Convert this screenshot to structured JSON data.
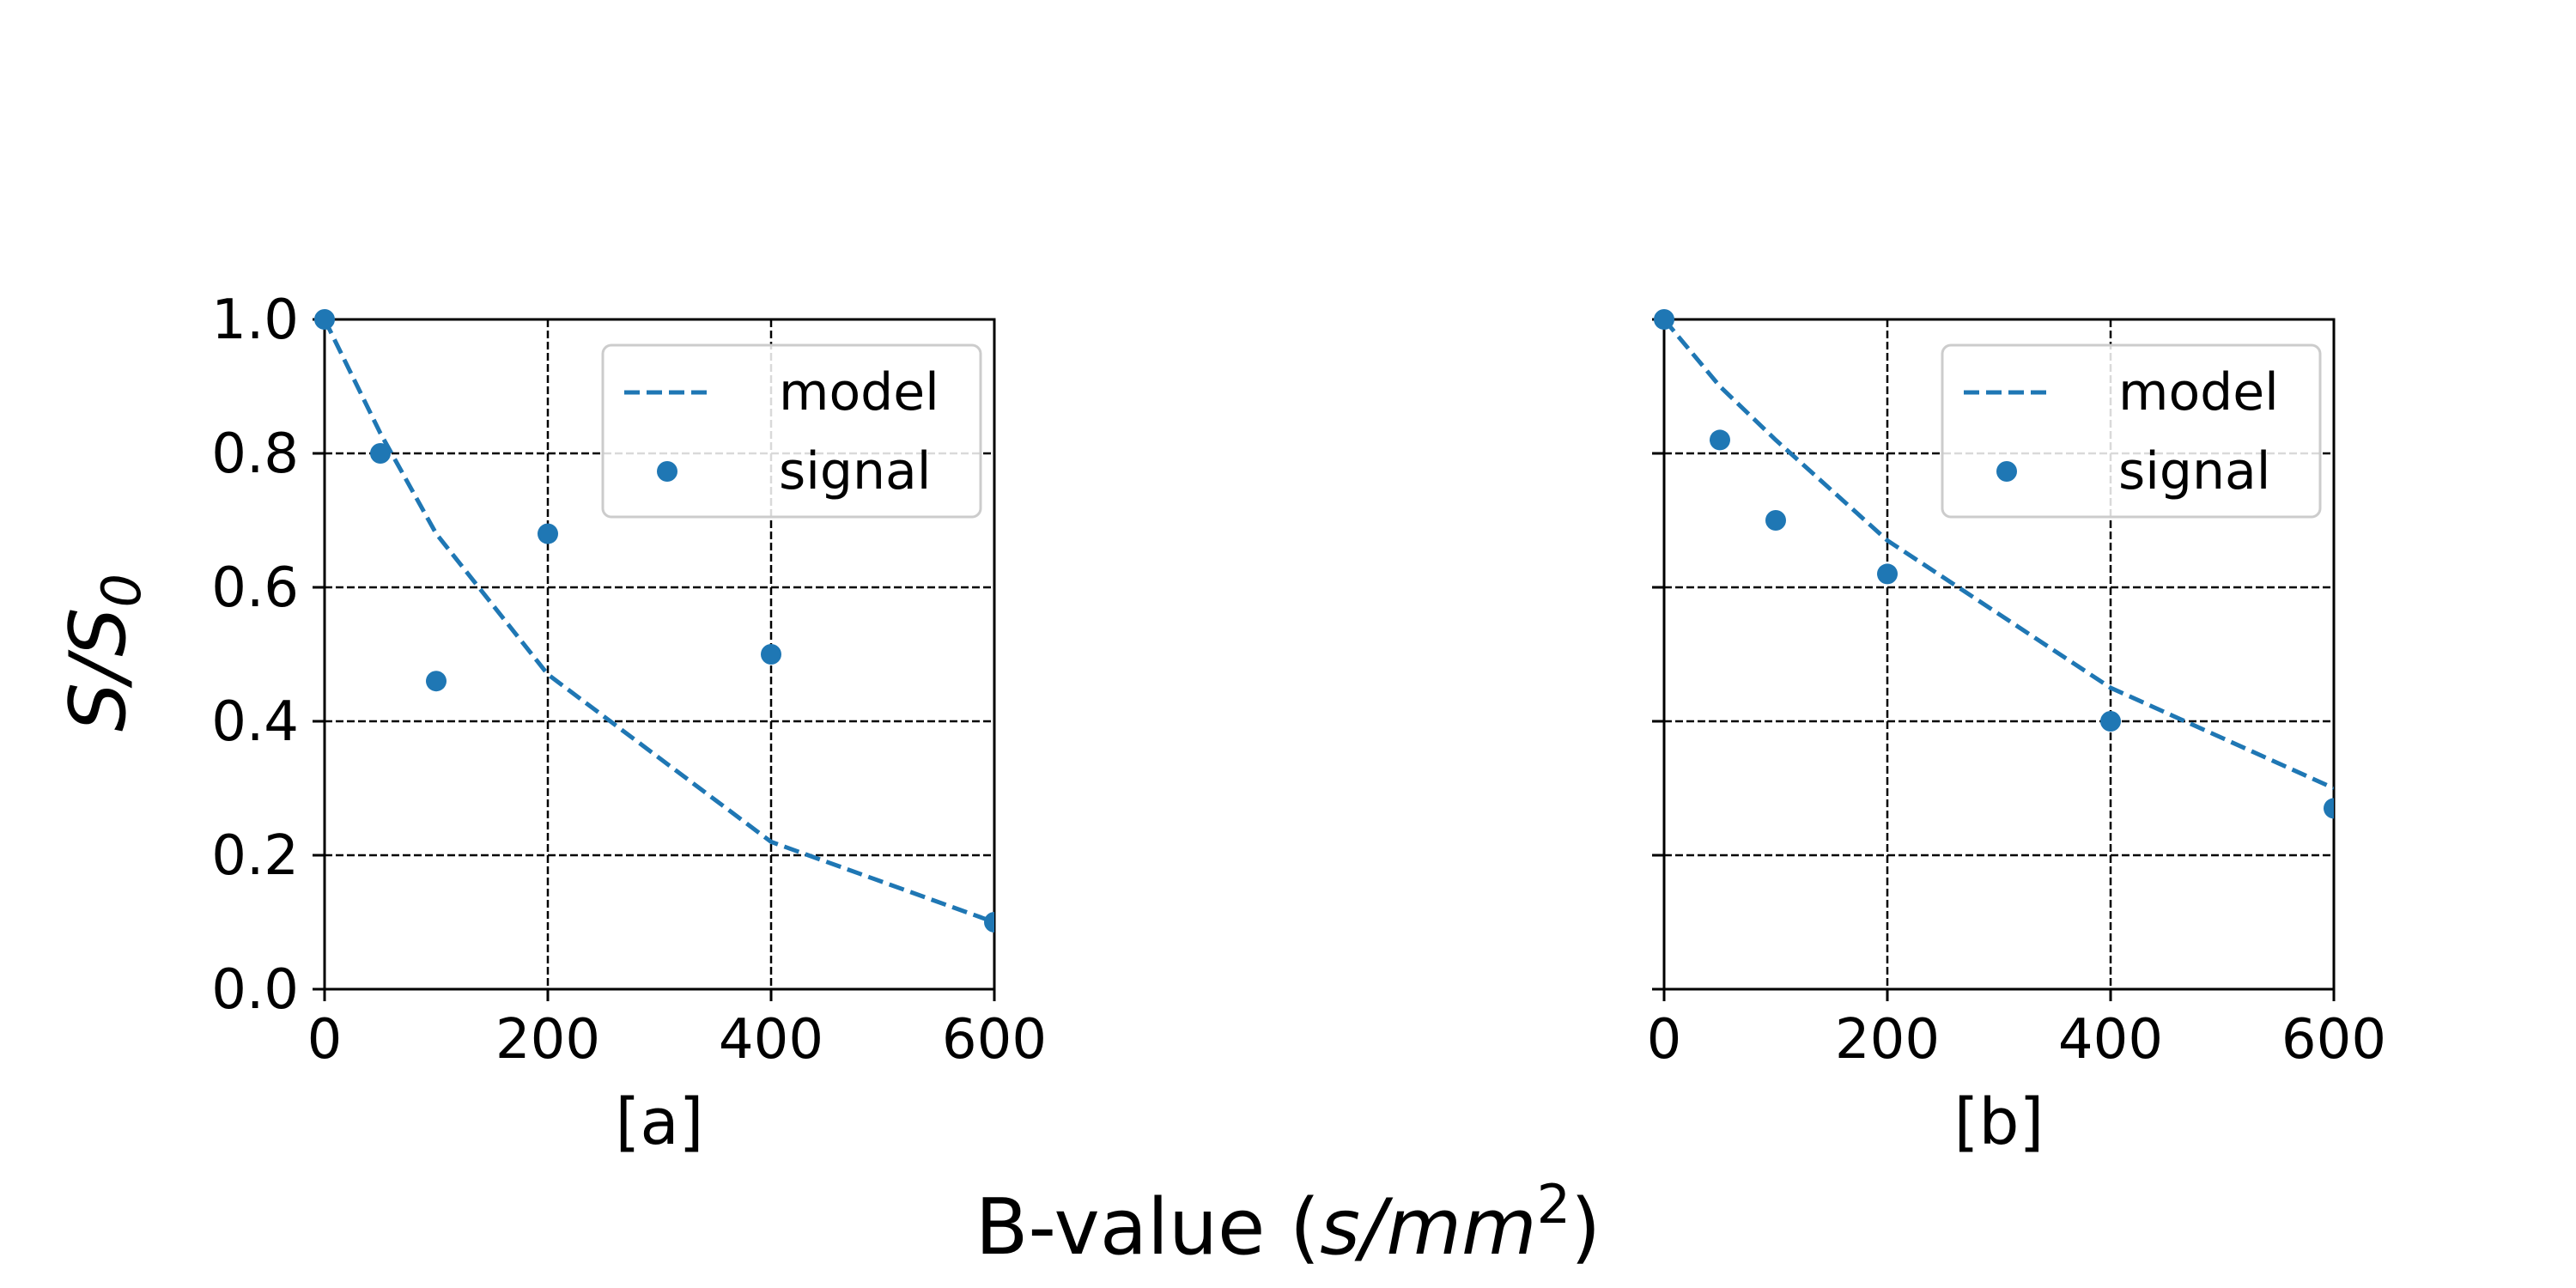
{
  "figure": {
    "supxlabel": "B-value (s/mm²)",
    "supxlabel_plain": "B-value (",
    "supxlabel_math": "s/mm",
    "supxlabel_sup": "2",
    "supxlabel_close": ")",
    "supylabel_math": "S/S",
    "supylabel_sub": "0"
  },
  "chart_data": [
    {
      "type": "line",
      "panel_label": "[a]",
      "xlim": [
        0,
        600
      ],
      "ylim": [
        0.0,
        1.0
      ],
      "xticks": [
        "0",
        "200",
        "400",
        "600"
      ],
      "yticks": [
        "0.0",
        "0.2",
        "0.4",
        "0.6",
        "0.8",
        "1.0"
      ],
      "grid": true,
      "legend_position": "top-right",
      "series": [
        {
          "name": "model",
          "style": "dashed-line",
          "color": "#1f77b4",
          "x": [
            0,
            50,
            100,
            200,
            400,
            600
          ],
          "y": [
            1.0,
            0.83,
            0.68,
            0.47,
            0.22,
            0.1
          ]
        },
        {
          "name": "signal",
          "style": "scatter",
          "color": "#1f77b4",
          "x": [
            0,
            50,
            100,
            200,
            400,
            600
          ],
          "y": [
            1.0,
            0.8,
            0.46,
            0.68,
            0.5,
            0.1
          ]
        }
      ]
    },
    {
      "type": "line",
      "panel_label": "[b]",
      "xlim": [
        0,
        600
      ],
      "ylim": [
        0.0,
        1.0
      ],
      "xticks": [
        "0",
        "200",
        "400",
        "600"
      ],
      "yticks": [
        "0.0",
        "0.2",
        "0.4",
        "0.6",
        "0.8",
        "1.0"
      ],
      "grid": true,
      "legend_position": "top-right",
      "series": [
        {
          "name": "model",
          "style": "dashed-line",
          "color": "#1f77b4",
          "x": [
            0,
            50,
            100,
            200,
            400,
            600
          ],
          "y": [
            1.0,
            0.9,
            0.82,
            0.67,
            0.45,
            0.3
          ]
        },
        {
          "name": "signal",
          "style": "scatter",
          "color": "#1f77b4",
          "x": [
            0,
            50,
            100,
            200,
            400,
            600
          ],
          "y": [
            1.0,
            0.82,
            0.7,
            0.62,
            0.4,
            0.27
          ]
        }
      ]
    }
  ]
}
